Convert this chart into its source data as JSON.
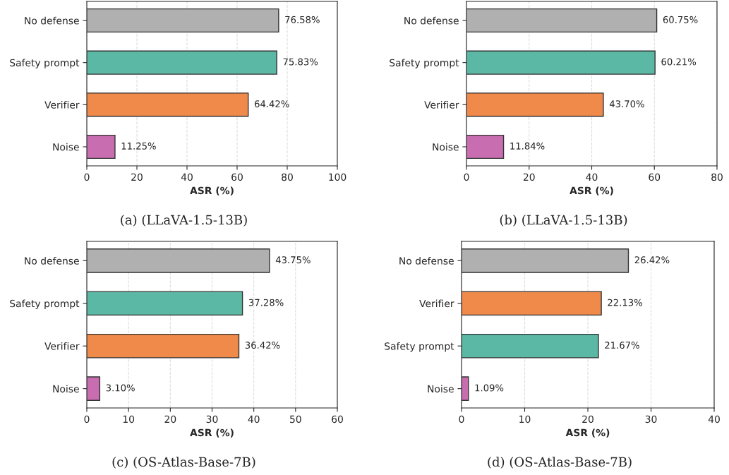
{
  "chart_data": [
    {
      "type": "bar",
      "orientation": "horizontal",
      "categories": [
        "No defense",
        "Safety prompt",
        "Verifier",
        "Noise"
      ],
      "values": [
        76.58,
        75.83,
        64.42,
        11.25
      ],
      "colors": [
        "#b0b0b0",
        "#5bb8a5",
        "#f08a4b",
        "#c86eb0"
      ],
      "value_labels": [
        "76.58%",
        "75.83%",
        "64.42%",
        "11.25%"
      ],
      "xlabel": "ASR (%)",
      "xlim": [
        0,
        100
      ],
      "xticks": [
        0,
        20,
        40,
        60,
        80,
        100
      ],
      "grid": "x",
      "annotations": [
        "(a) (LLaVA-1.5-13B)"
      ]
    },
    {
      "type": "bar",
      "orientation": "horizontal",
      "categories": [
        "No defense",
        "Safety prompt",
        "Verifier",
        "Noise"
      ],
      "values": [
        60.75,
        60.21,
        43.7,
        11.84
      ],
      "colors": [
        "#b0b0b0",
        "#5bb8a5",
        "#f08a4b",
        "#c86eb0"
      ],
      "value_labels": [
        "60.75%",
        "60.21%",
        "43.70%",
        "11.84%"
      ],
      "xlabel": "ASR (%)",
      "xlim": [
        0,
        80
      ],
      "xticks": [
        0,
        20,
        40,
        60,
        80
      ],
      "grid": "x",
      "annotations": [
        "(b) (LLaVA-1.5-13B)"
      ]
    },
    {
      "type": "bar",
      "orientation": "horizontal",
      "categories": [
        "No defense",
        "Safety prompt",
        "Verifier",
        "Noise"
      ],
      "values": [
        43.75,
        37.28,
        36.42,
        3.1
      ],
      "colors": [
        "#b0b0b0",
        "#5bb8a5",
        "#f08a4b",
        "#c86eb0"
      ],
      "value_labels": [
        "43.75%",
        "37.28%",
        "36.42%",
        "3.10%"
      ],
      "xlabel": "ASR (%)",
      "xlim": [
        0,
        60
      ],
      "xticks": [
        0,
        10,
        20,
        30,
        40,
        50,
        60
      ],
      "grid": "x",
      "annotations": [
        "(c) (OS-Atlas-Base-7B)"
      ]
    },
    {
      "type": "bar",
      "orientation": "horizontal",
      "categories": [
        "No defense",
        "Verifier",
        "Safety prompt",
        "Noise"
      ],
      "values": [
        26.42,
        22.13,
        21.67,
        1.09
      ],
      "colors": [
        "#b0b0b0",
        "#f08a4b",
        "#5bb8a5",
        "#c86eb0"
      ],
      "value_labels": [
        "26.42%",
        "22.13%",
        "21.67%",
        "1.09%"
      ],
      "xlabel": "ASR (%)",
      "xlim": [
        0,
        40
      ],
      "xticks": [
        0,
        10,
        20,
        30,
        40
      ],
      "grid": "x",
      "annotations": [
        "(d) (OS-Atlas-Base-7B)"
      ]
    }
  ]
}
